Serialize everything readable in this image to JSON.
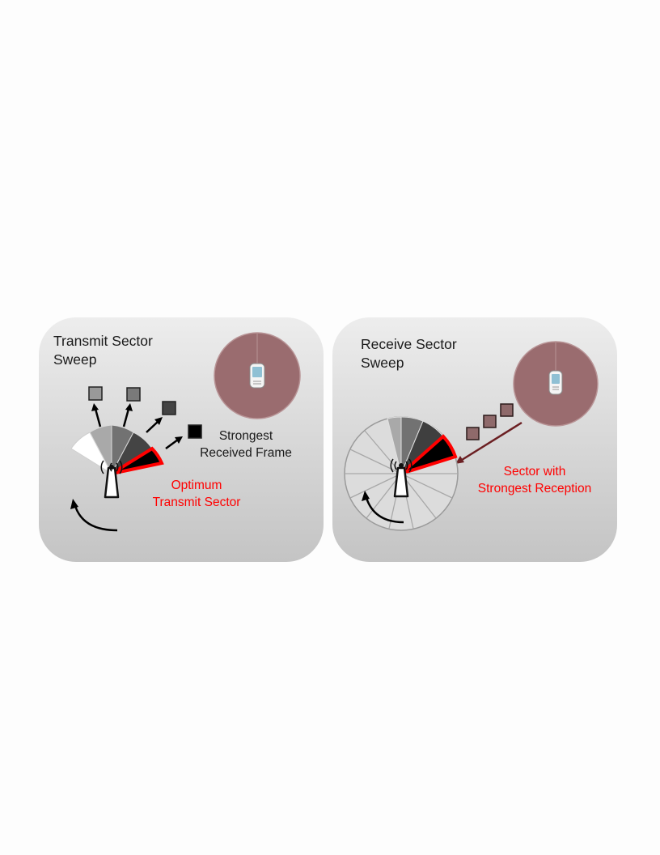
{
  "transmit_panel": {
    "title": "Transmit Sector\nSweep",
    "frame_label": "Strongest\nReceived Frame",
    "sector_label": "Optimum\nTransmit Sector"
  },
  "receive_panel": {
    "title": "Receive Sector\nSweep",
    "sector_label": "Sector with\nStrongest Reception"
  },
  "colors": {
    "highlight": "#ff0000",
    "receiver_disc": "#9a6c6f",
    "frame_tint": "#8f6a6b",
    "arrow_dark_red": "#6b1f22"
  }
}
